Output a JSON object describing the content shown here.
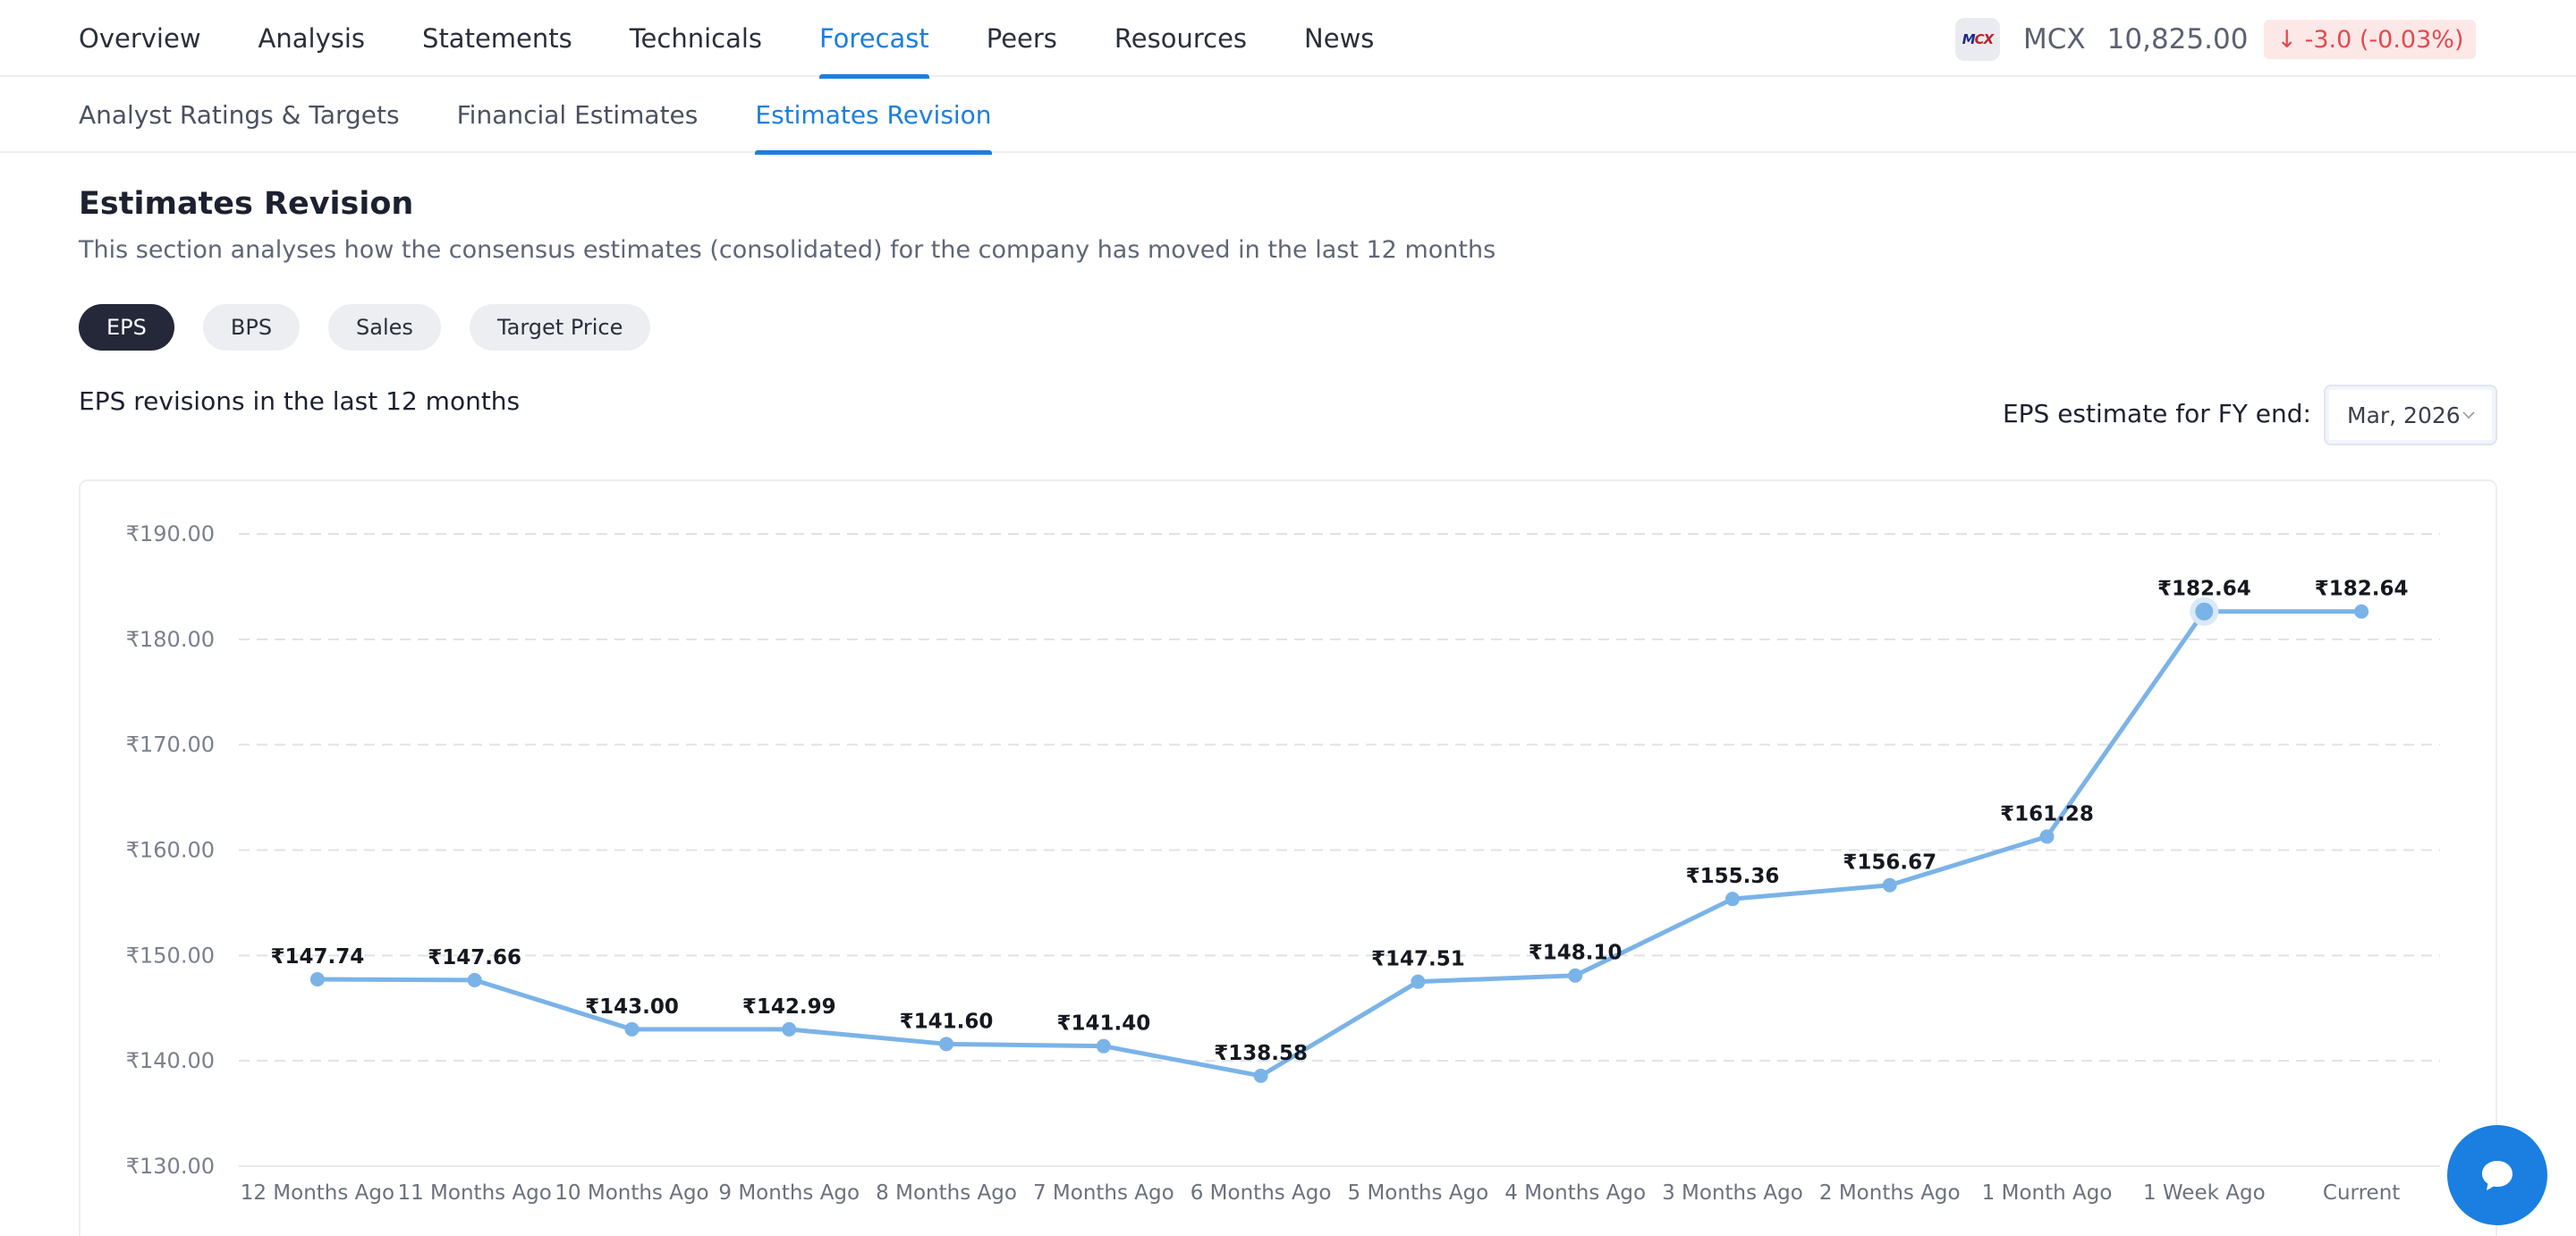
{
  "top_nav": {
    "tabs": [
      {
        "label": "Overview"
      },
      {
        "label": "Analysis"
      },
      {
        "label": "Statements"
      },
      {
        "label": "Technicals"
      },
      {
        "label": "Forecast",
        "active": true
      },
      {
        "label": "Peers"
      },
      {
        "label": "Resources"
      },
      {
        "label": "News"
      }
    ],
    "ticker": {
      "logo_text_a": "M",
      "logo_text_b": "CX",
      "symbol": "MCX",
      "price": "10,825.00",
      "change": "↓ -3.0 (-0.03%)"
    }
  },
  "sub_nav": {
    "tabs": [
      {
        "label": "Analyst Ratings & Targets"
      },
      {
        "label": "Financial Estimates"
      },
      {
        "label": "Estimates Revision",
        "active": true
      }
    ]
  },
  "section": {
    "title": "Estimates Revision",
    "description": "This section analyses how the consensus estimates (consolidated) for the company has moved in the last 12 months",
    "pills": [
      {
        "label": "EPS",
        "active": true
      },
      {
        "label": "BPS"
      },
      {
        "label": "Sales"
      },
      {
        "label": "Target Price"
      }
    ],
    "chart_heading": "EPS revisions in the last 12 months",
    "fy_label": "EPS estimate for FY end:",
    "fy_value": "Mar, 2026"
  },
  "colors": {
    "accent": "#1a7fe0",
    "line": "#7ab3e8",
    "negative": "#e5484d"
  },
  "chart_data": {
    "type": "line",
    "categories": [
      "12 Months Ago",
      "11 Months Ago",
      "10 Months Ago",
      "9 Months Ago",
      "8 Months Ago",
      "7 Months Ago",
      "6 Months Ago",
      "5 Months Ago",
      "4 Months Ago",
      "3 Months Ago",
      "2 Months Ago",
      "1 Month Ago",
      "1 Week Ago",
      "Current"
    ],
    "values": [
      147.74,
      147.66,
      143.0,
      142.99,
      141.6,
      141.4,
      138.58,
      147.51,
      148.1,
      155.36,
      156.67,
      161.28,
      182.64,
      182.64
    ],
    "data_labels": [
      "₹147.74",
      "₹147.66",
      "₹143.00",
      "₹142.99",
      "₹141.60",
      "₹141.40",
      "₹138.58",
      "₹147.51",
      "₹148.10",
      "₹155.36",
      "₹156.67",
      "₹161.28",
      "₹182.64",
      "₹182.64"
    ],
    "y_ticks": [
      130,
      140,
      150,
      160,
      170,
      180,
      190
    ],
    "y_tick_labels": [
      "₹130.00",
      "₹140.00",
      "₹150.00",
      "₹160.00",
      "₹170.00",
      "₹180.00",
      "₹190.00"
    ],
    "ylim": [
      130,
      190
    ],
    "grid": true,
    "highlighted_index": 12
  }
}
